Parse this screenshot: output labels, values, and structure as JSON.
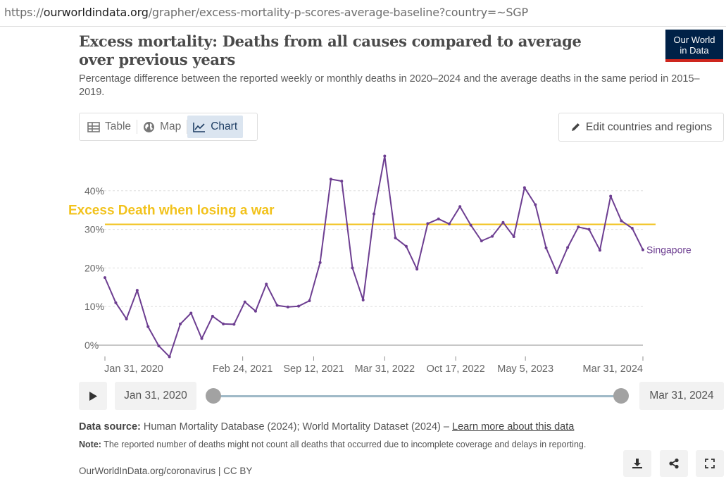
{
  "browser": {
    "url_prefix": "https://",
    "url_domain": "ourworldindata.org",
    "url_path": "/grapher/excess-mortality-p-scores-average-baseline?country=~SGP"
  },
  "header": {
    "title": "Excess mortality: Deaths from all causes compared to average over previous years",
    "subtitle": "Percentage difference between the reported weekly or monthly deaths in 2020–2024 and the average deaths in the same period in 2015–2019.",
    "logo_line1": "Our World",
    "logo_line2": "in Data"
  },
  "controls": {
    "tabs": [
      {
        "label": "Table",
        "icon": "table-icon",
        "active": false
      },
      {
        "label": "Map",
        "icon": "globe-icon",
        "active": false
      },
      {
        "label": "Chart",
        "icon": "line-chart-icon",
        "active": true
      }
    ],
    "edit_label": "Edit countries and regions"
  },
  "timeline": {
    "start_label": "Jan 31, 2020",
    "end_label": "Mar 31, 2024"
  },
  "footer": {
    "source_label": "Data source:",
    "source_text": "Human Mortality Database (2024); World Mortality Dataset (2024) –",
    "source_link": "Learn more about this data",
    "note_label": "Note:",
    "note_text": "The reported number of deaths might not count all deaths that occurred due to incomplete coverage and delays in reporting.",
    "credit": "OurWorldInData.org/coronavirus | CC BY"
  },
  "colors": {
    "series": "#6d3e91",
    "annotation": "#f2c21b",
    "grid": "#dddddd",
    "logo_bg": "#002147",
    "logo_accent": "#ce261e"
  },
  "chart_data": {
    "type": "line",
    "ylabel": "",
    "xlabel": "",
    "ylim": [
      -4,
      50
    ],
    "xlim": [
      2020.083,
      2024.25
    ],
    "yticks": [
      0,
      10,
      20,
      30,
      40
    ],
    "ytick_labels": [
      "0%",
      "10%",
      "20%",
      "30%",
      "40%"
    ],
    "xticks": [
      {
        "value": 2020.083,
        "label": "Jan 31, 2020"
      },
      {
        "value": 2021.15,
        "label": "Feb 24, 2021"
      },
      {
        "value": 2021.7,
        "label": "Sep 12, 2021"
      },
      {
        "value": 2022.25,
        "label": "Mar 31, 2022"
      },
      {
        "value": 2022.8,
        "label": "Oct 17, 2022"
      },
      {
        "value": 2023.34,
        "label": "May 5, 2023"
      },
      {
        "value": 2024.25,
        "label": "Mar 31, 2024"
      }
    ],
    "series": [
      {
        "name": "Singapore",
        "x": [
          2020.083,
          2020.167,
          2020.25,
          2020.333,
          2020.417,
          2020.5,
          2020.583,
          2020.667,
          2020.75,
          2020.833,
          2020.917,
          2021.0,
          2021.083,
          2021.167,
          2021.25,
          2021.333,
          2021.417,
          2021.5,
          2021.583,
          2021.667,
          2021.75,
          2021.833,
          2021.917,
          2022.0,
          2022.083,
          2022.167,
          2022.25,
          2022.333,
          2022.417,
          2022.5,
          2022.583,
          2022.667,
          2022.75,
          2022.833,
          2022.917,
          2023.0,
          2023.083,
          2023.167,
          2023.25,
          2023.333,
          2023.417,
          2023.5,
          2023.583,
          2023.667,
          2023.75,
          2023.833,
          2023.917,
          2024.0,
          2024.083,
          2024.167,
          2024.25
        ],
        "values": [
          17.5,
          11,
          6.8,
          14.2,
          4.8,
          -0.2,
          -3,
          5.5,
          8.3,
          1.7,
          7.5,
          5.5,
          5.4,
          11.2,
          8.8,
          15.8,
          10.3,
          9.9,
          10.1,
          11.5,
          21.4,
          43,
          42.5,
          20,
          11.7,
          34,
          49,
          27.8,
          25.6,
          19.7,
          31.5,
          32.7,
          31.4,
          35.9,
          31.1,
          27,
          28.2,
          31.8,
          28.1,
          40.8,
          36.4,
          25.2,
          18.8,
          25.3,
          30.6,
          30,
          24.6,
          38.6,
          32.2,
          30.3,
          24.7
        ]
      }
    ],
    "annotation": {
      "label": "Excess Death when losing a war",
      "y": 31.3
    }
  }
}
